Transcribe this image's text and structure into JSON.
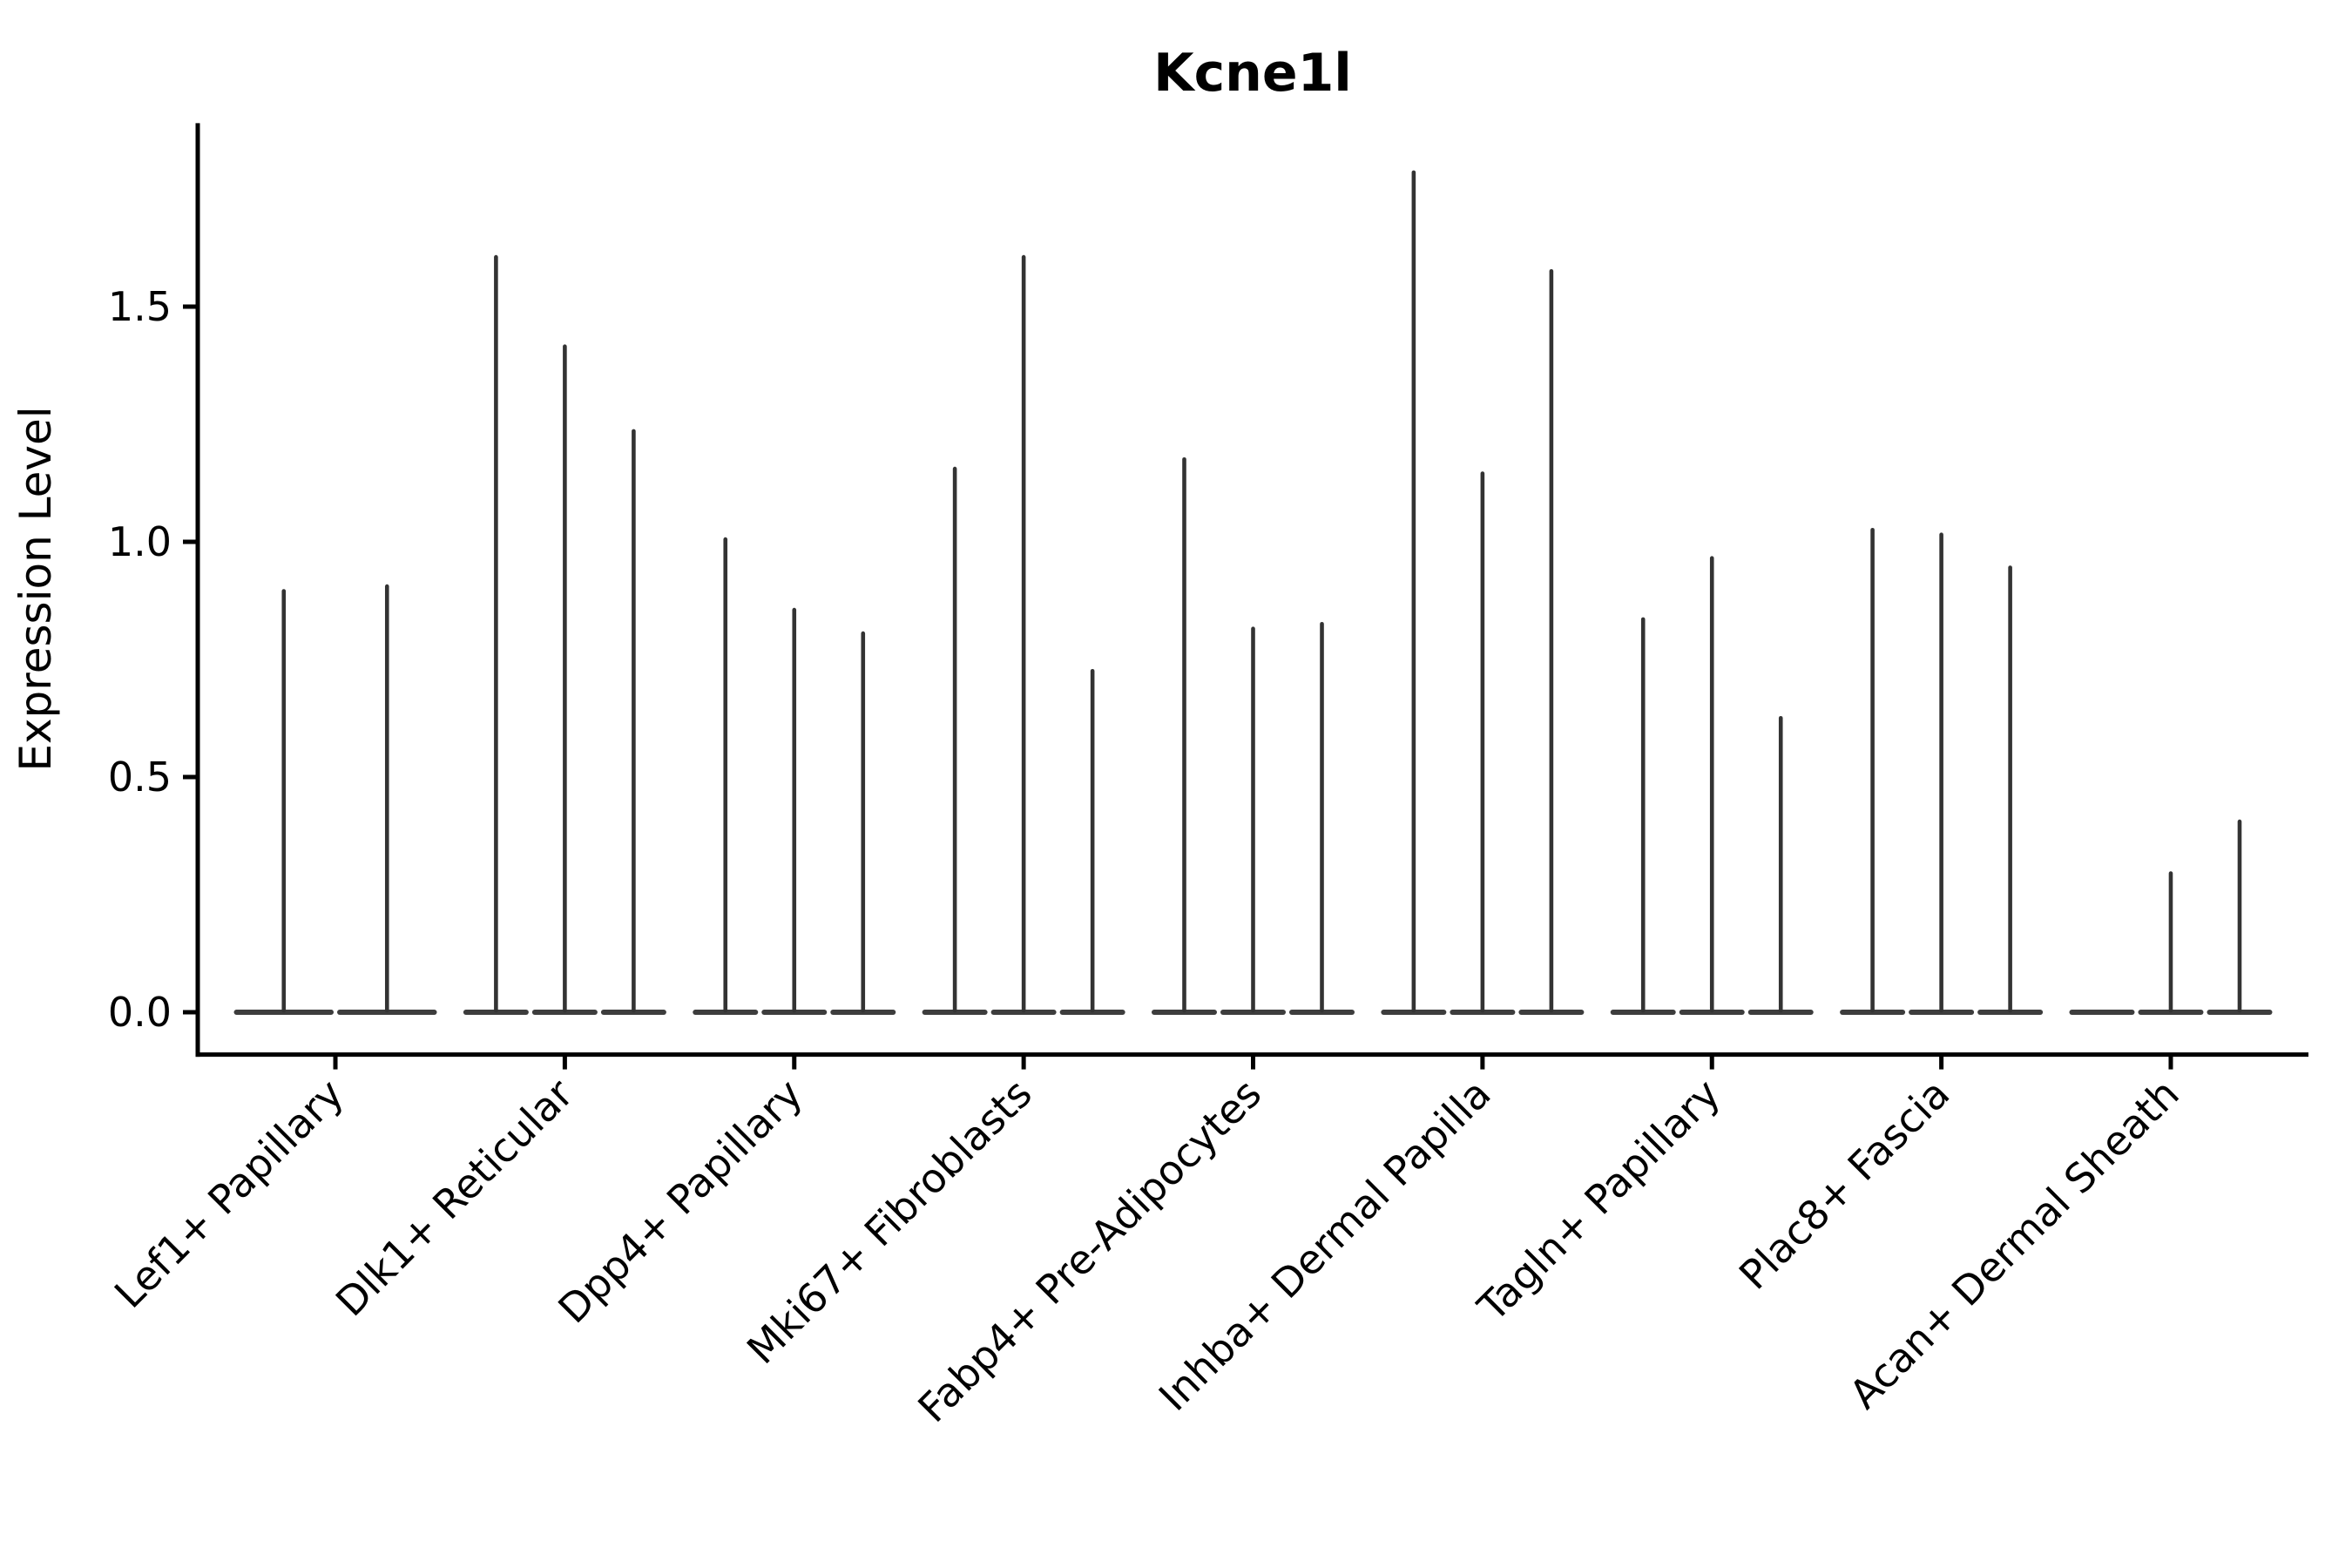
{
  "chart_data": {
    "type": "violin",
    "title": "Kcne1l",
    "ylabel": "Expression Level",
    "xlabel": "",
    "ylim": [
      -0.09,
      1.89
    ],
    "yticks": [
      0.0,
      0.5,
      1.0,
      1.5
    ],
    "ytick_labels": [
      "0.0",
      "0.5",
      "1.0",
      "1.5"
    ],
    "grid": false,
    "legend": "none",
    "violin_color": "#333333",
    "axis_color": "#000000",
    "violin_style": "very narrow spike violins with wide flat base at zero",
    "categories": [
      "Lef1+ Papillary",
      "Dlk1+ Reticular",
      "Dpp4+ Papillary",
      "Mki67+ Fibroblasts",
      "Fabp4+ Pre-Adipocytes",
      "Inhba+ Dermal Papilla",
      "Tagln+ Papillary",
      "Plac8+ Fascia",
      "Acan+ Dermal Sheath"
    ],
    "groups": [
      {
        "category": "Lef1+ Papillary",
        "violin_max_values": [
          0.9,
          0.91
        ]
      },
      {
        "category": "Dlk1+ Reticular",
        "violin_max_values": [
          1.61,
          1.42,
          1.24
        ]
      },
      {
        "category": "Dpp4+ Papillary",
        "violin_max_values": [
          1.01,
          0.86,
          0.81
        ]
      },
      {
        "category": "Mki67+ Fibroblasts",
        "violin_max_values": [
          1.16,
          1.61,
          0.73
        ]
      },
      {
        "category": "Fabp4+ Pre-Adipocytes",
        "violin_max_values": [
          1.18,
          0.82,
          0.83
        ]
      },
      {
        "category": "Inhba+ Dermal Papilla",
        "violin_max_values": [
          1.79,
          1.15,
          1.58
        ]
      },
      {
        "category": "Tagln+ Papillary",
        "violin_max_values": [
          0.84,
          0.97,
          0.63
        ]
      },
      {
        "category": "Plac8+ Fascia",
        "violin_max_values": [
          1.03,
          1.02,
          0.95
        ]
      },
      {
        "category": "Acan+ Dermal Sheath",
        "violin_max_values": [
          0.0,
          0.3,
          0.41
        ]
      }
    ]
  }
}
